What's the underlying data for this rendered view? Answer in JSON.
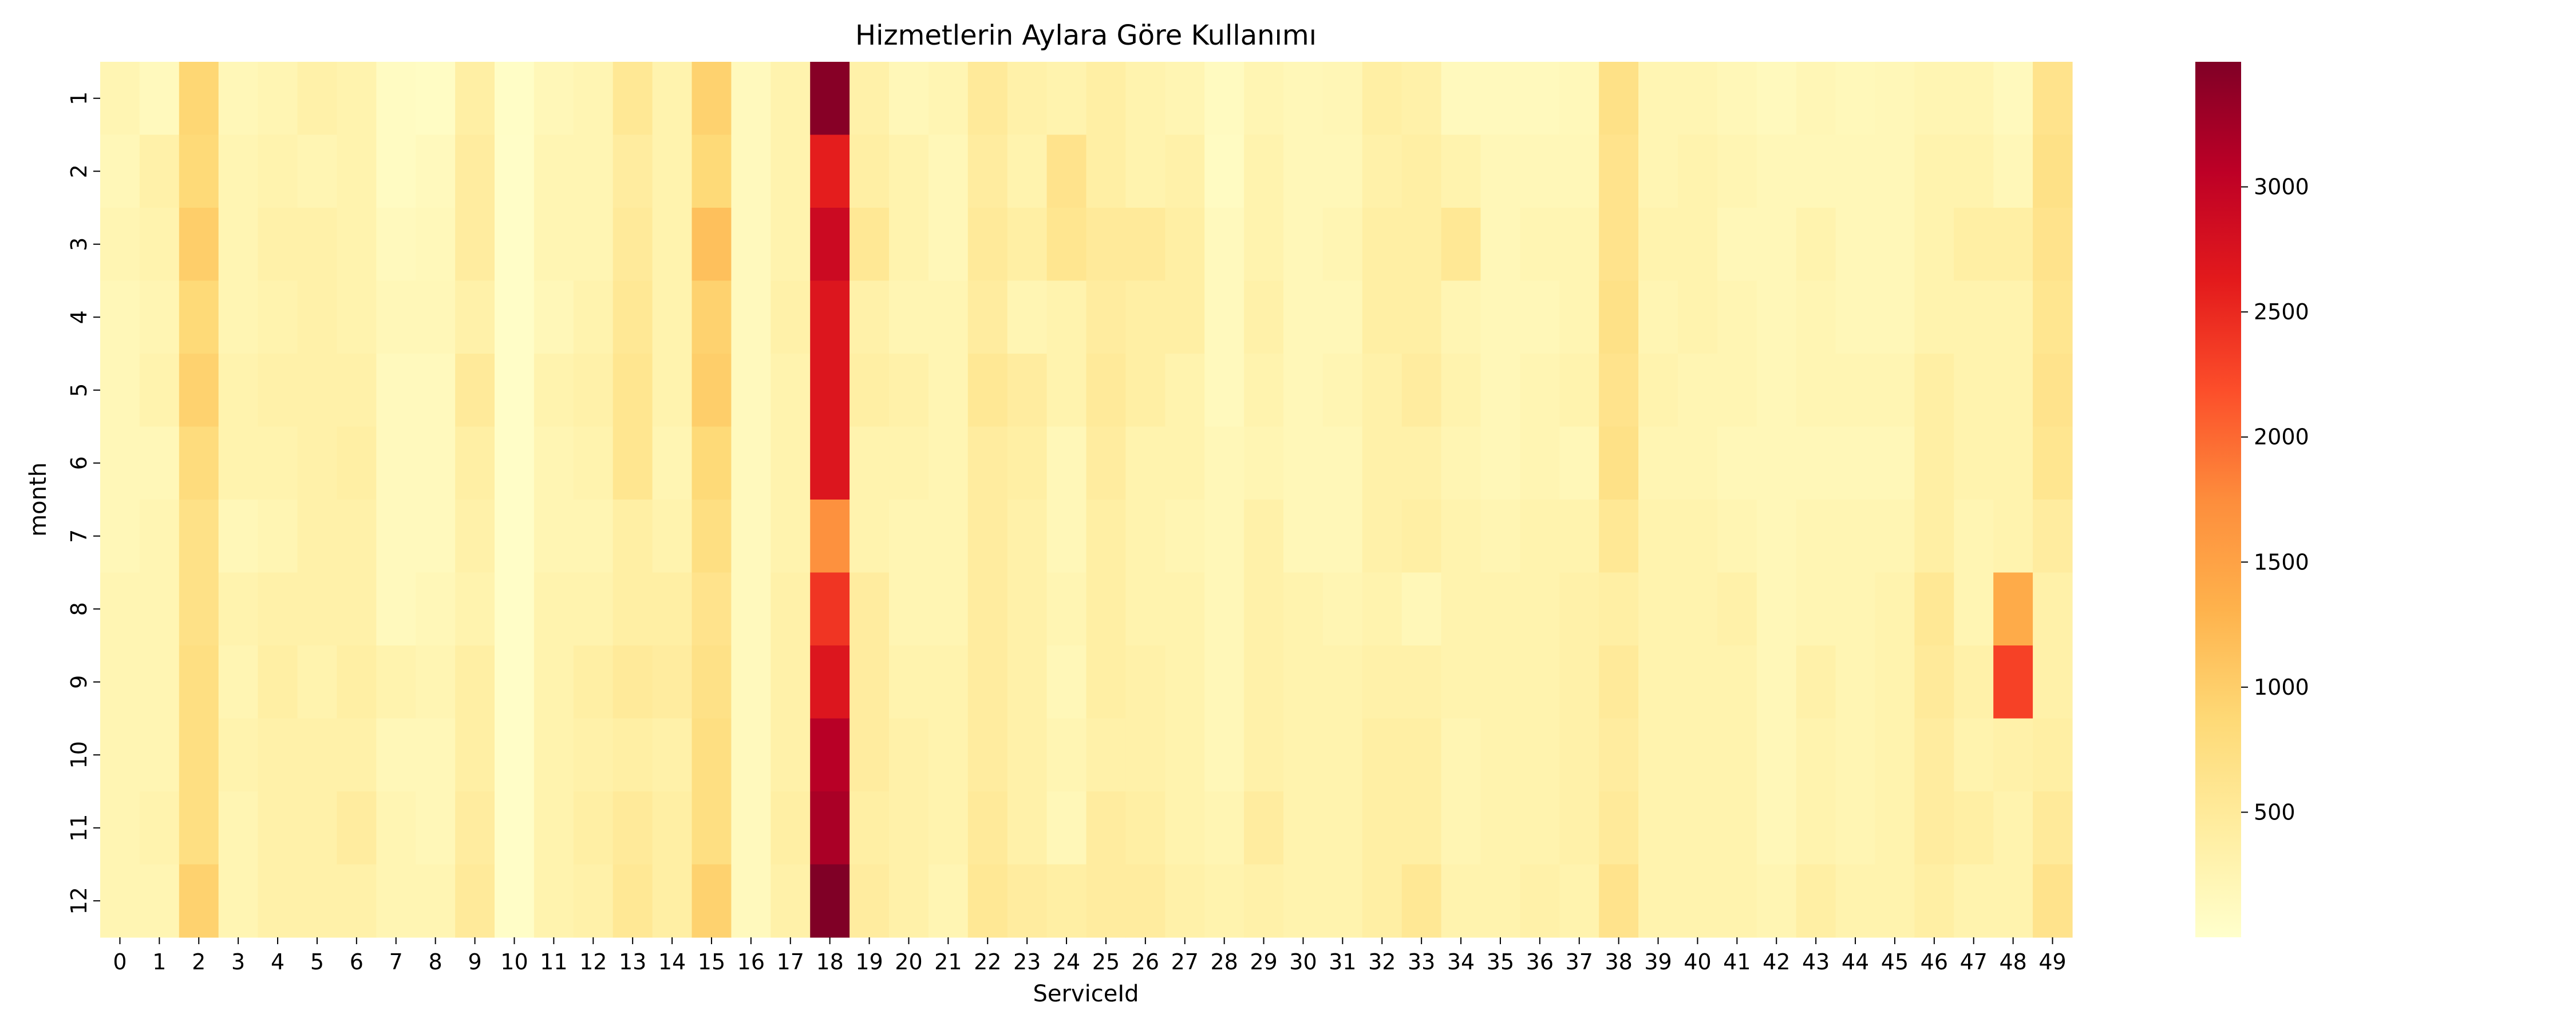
{
  "chart_data": {
    "type": "heatmap",
    "title": "Hizmetlerin Aylara Göre Kullanımı",
    "xlabel": "ServiceId",
    "ylabel": "month",
    "x_categories": [
      "0",
      "1",
      "2",
      "3",
      "4",
      "5",
      "6",
      "7",
      "8",
      "9",
      "10",
      "11",
      "12",
      "13",
      "14",
      "15",
      "16",
      "17",
      "18",
      "19",
      "20",
      "21",
      "22",
      "23",
      "24",
      "25",
      "26",
      "27",
      "28",
      "29",
      "30",
      "31",
      "32",
      "33",
      "34",
      "35",
      "36",
      "37",
      "38",
      "39",
      "40",
      "41",
      "42",
      "43",
      "44",
      "45",
      "46",
      "47",
      "48",
      "49"
    ],
    "y_categories": [
      "1",
      "2",
      "3",
      "4",
      "5",
      "6",
      "7",
      "8",
      "9",
      "10",
      "11",
      "12"
    ],
    "colormap": "YlOrRd",
    "color_range": [
      0,
      3500
    ],
    "colorbar_ticks": [
      500,
      1000,
      1500,
      2000,
      2500,
      3000
    ],
    "grid": false,
    "values": [
      [
        250,
        150,
        900,
        200,
        250,
        350,
        300,
        100,
        80,
        400,
        60,
        200,
        250,
        550,
        300,
        950,
        150,
        300,
        3450,
        350,
        200,
        250,
        500,
        350,
        300,
        400,
        300,
        250,
        120,
        250,
        200,
        220,
        400,
        350,
        150,
        150,
        150,
        180,
        700,
        250,
        250,
        200,
        150,
        220,
        180,
        200,
        250,
        250,
        150,
        650
      ],
      [
        200,
        350,
        850,
        250,
        300,
        250,
        300,
        100,
        150,
        450,
        50,
        250,
        250,
        450,
        300,
        850,
        150,
        300,
        2600,
        400,
        300,
        200,
        450,
        300,
        650,
        400,
        300,
        350,
        100,
        300,
        200,
        200,
        350,
        400,
        300,
        200,
        200,
        200,
        650,
        250,
        300,
        250,
        200,
        200,
        200,
        200,
        300,
        300,
        200,
        700
      ],
      [
        250,
        300,
        1000,
        250,
        350,
        350,
        300,
        150,
        180,
        450,
        50,
        250,
        250,
        500,
        300,
        1150,
        150,
        300,
        2900,
        550,
        300,
        200,
        500,
        400,
        600,
        500,
        500,
        400,
        150,
        300,
        200,
        250,
        400,
        400,
        550,
        200,
        250,
        250,
        650,
        300,
        300,
        200,
        200,
        300,
        200,
        200,
        300,
        400,
        400,
        650
      ],
      [
        200,
        250,
        850,
        250,
        300,
        350,
        300,
        200,
        200,
        350,
        50,
        200,
        300,
        550,
        300,
        950,
        150,
        350,
        2700,
        350,
        250,
        250,
        450,
        250,
        300,
        450,
        400,
        400,
        150,
        350,
        200,
        200,
        400,
        400,
        250,
        200,
        200,
        250,
        700,
        250,
        300,
        250,
        200,
        250,
        200,
        200,
        300,
        300,
        300,
        600
      ],
      [
        200,
        300,
        950,
        300,
        350,
        350,
        350,
        150,
        150,
        500,
        50,
        300,
        350,
        600,
        300,
        1000,
        150,
        300,
        2700,
        400,
        350,
        250,
        550,
        450,
        300,
        500,
        400,
        300,
        150,
        300,
        200,
        250,
        350,
        450,
        300,
        200,
        250,
        300,
        650,
        300,
        250,
        250,
        200,
        250,
        250,
        250,
        400,
        300,
        300,
        650
      ],
      [
        200,
        200,
        800,
        300,
        300,
        350,
        400,
        150,
        150,
        400,
        50,
        250,
        300,
        600,
        250,
        850,
        150,
        300,
        2700,
        300,
        300,
        250,
        450,
        400,
        200,
        450,
        300,
        300,
        200,
        250,
        200,
        200,
        350,
        350,
        250,
        200,
        250,
        200,
        700,
        250,
        250,
        200,
        200,
        200,
        200,
        200,
        400,
        300,
        300,
        600
      ],
      [
        200,
        250,
        700,
        200,
        250,
        350,
        350,
        150,
        150,
        350,
        50,
        250,
        250,
        400,
        300,
        750,
        150,
        300,
        1700,
        300,
        250,
        250,
        450,
        350,
        200,
        400,
        300,
        250,
        200,
        350,
        200,
        200,
        350,
        400,
        300,
        250,
        300,
        300,
        550,
        300,
        300,
        250,
        200,
        250,
        250,
        250,
        400,
        250,
        300,
        450
      ],
      [
        250,
        250,
        700,
        300,
        350,
        350,
        350,
        150,
        200,
        300,
        50,
        300,
        300,
        400,
        400,
        650,
        150,
        350,
        2400,
        450,
        250,
        250,
        450,
        350,
        250,
        400,
        300,
        300,
        200,
        350,
        300,
        250,
        300,
        200,
        300,
        300,
        300,
        350,
        400,
        300,
        300,
        350,
        200,
        250,
        250,
        300,
        550,
        250,
        1400,
        350
      ],
      [
        250,
        250,
        750,
        250,
        400,
        300,
        400,
        300,
        250,
        400,
        50,
        300,
        400,
        500,
        450,
        700,
        150,
        350,
        2700,
        450,
        300,
        300,
        450,
        350,
        200,
        400,
        350,
        300,
        200,
        350,
        300,
        300,
        350,
        350,
        300,
        300,
        300,
        350,
        500,
        300,
        300,
        300,
        200,
        350,
        250,
        300,
        500,
        350,
        2300,
        350
      ],
      [
        250,
        250,
        750,
        300,
        350,
        350,
        350,
        200,
        200,
        400,
        50,
        300,
        350,
        400,
        350,
        750,
        150,
        350,
        3100,
        450,
        350,
        300,
        450,
        350,
        250,
        350,
        350,
        300,
        200,
        350,
        300,
        300,
        400,
        400,
        250,
        300,
        300,
        350,
        450,
        300,
        300,
        300,
        200,
        300,
        250,
        300,
        450,
        300,
        350,
        400
      ],
      [
        250,
        300,
        750,
        250,
        350,
        350,
        450,
        250,
        200,
        450,
        50,
        300,
        400,
        500,
        400,
        750,
        150,
        400,
        3200,
        400,
        350,
        300,
        500,
        350,
        200,
        450,
        400,
        300,
        250,
        450,
        300,
        300,
        400,
        400,
        250,
        300,
        300,
        350,
        500,
        300,
        300,
        300,
        200,
        300,
        250,
        300,
        450,
        400,
        300,
        500
      ],
      [
        250,
        250,
        950,
        250,
        350,
        350,
        350,
        250,
        250,
        500,
        50,
        300,
        350,
        550,
        400,
        950,
        150,
        350,
        3500,
        450,
        350,
        250,
        550,
        450,
        400,
        450,
        450,
        350,
        300,
        350,
        300,
        300,
        400,
        550,
        300,
        300,
        350,
        300,
        650,
        300,
        300,
        300,
        250,
        400,
        300,
        300,
        400,
        300,
        300,
        650
      ]
    ]
  }
}
